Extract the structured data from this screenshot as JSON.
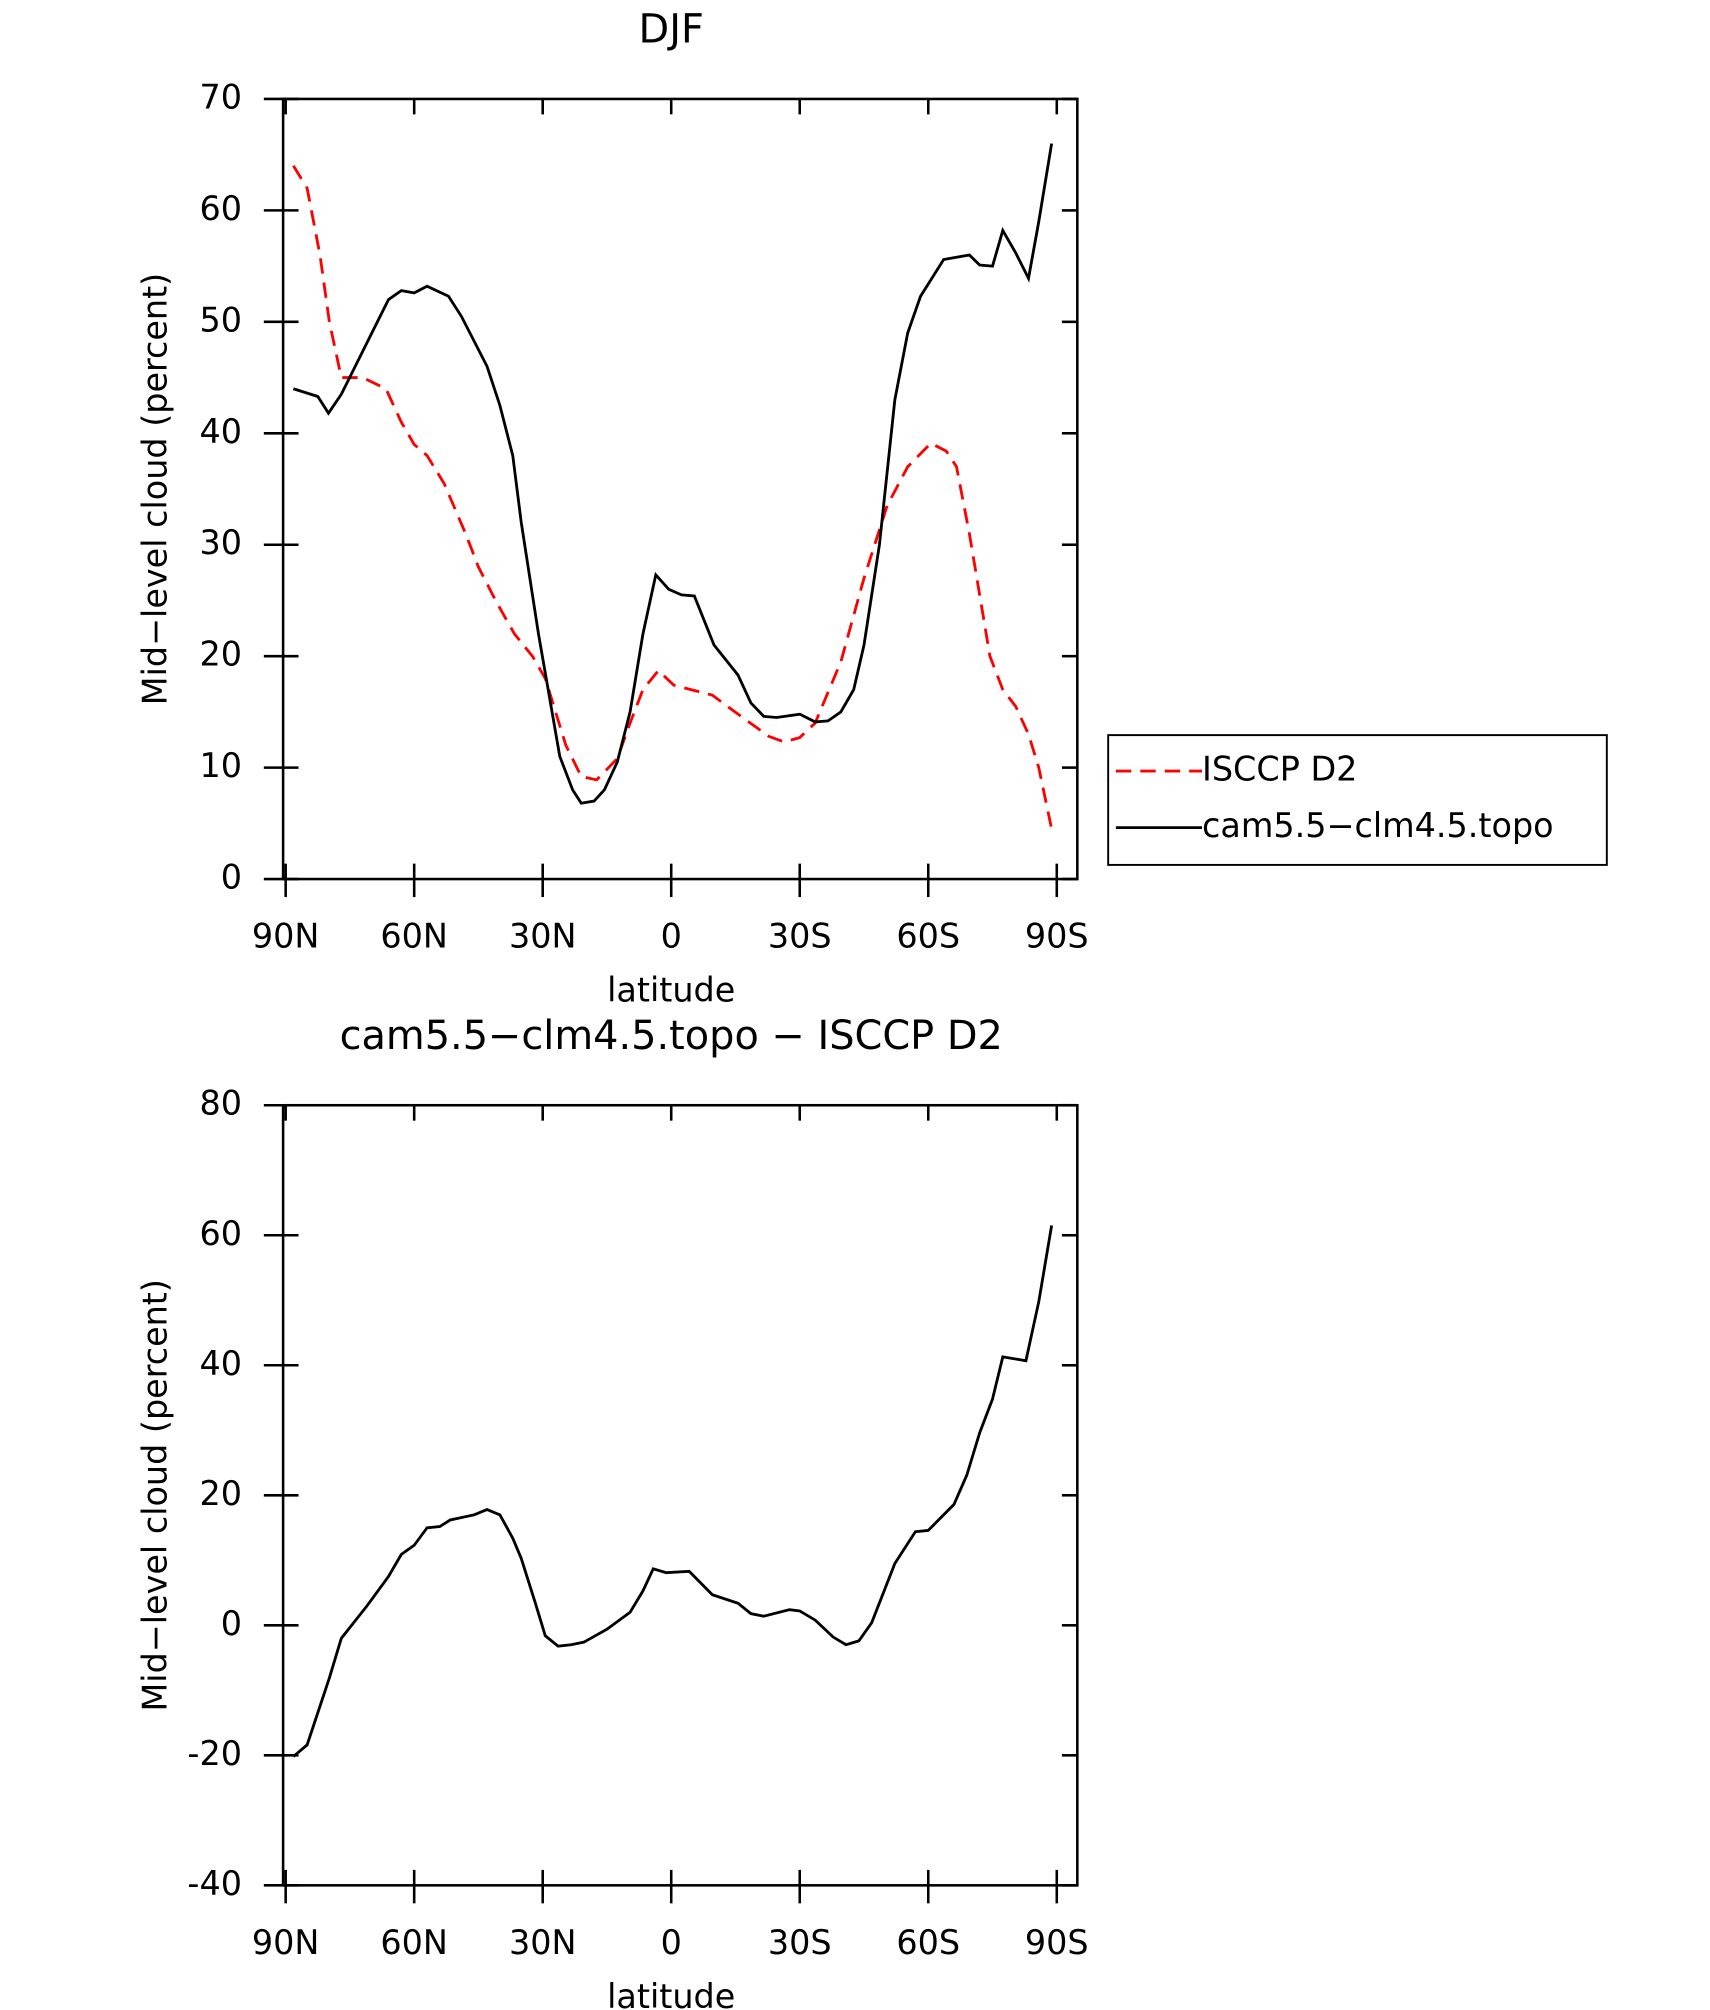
{
  "chart_data": [
    {
      "type": "line",
      "title": "DJF",
      "xlabel": "latitude",
      "ylabel": "Mid−level cloud (percent)",
      "xlim": [
        90,
        -90
      ],
      "xticks": [
        {
          "value": 90,
          "label": "90N"
        },
        {
          "value": 60,
          "label": "60N"
        },
        {
          "value": 30,
          "label": "30N"
        },
        0,
        {
          "value": -30,
          "label": "30S"
        },
        {
          "value": -60,
          "label": "60S"
        },
        {
          "value": -90,
          "label": "90S"
        }
      ],
      "ylim": [
        0,
        70
      ],
      "yticks": [
        0,
        10,
        20,
        30,
        40,
        50,
        60,
        70
      ],
      "series": [
        {
          "name": "ISCCP D2",
          "color": "#ff0000",
          "dash": true,
          "x": [
            88.2,
            85,
            82,
            79.8,
            77,
            72,
            66.6,
            63,
            60,
            57,
            53,
            48,
            45,
            41,
            36.6,
            32.4,
            29.4,
            24.6,
            21,
            17.4,
            12.6,
            9.6,
            6.6,
            3,
            -0.6,
            -9.6,
            -15.6,
            -22.8,
            -26.4,
            -30,
            -33.6,
            -39.6,
            -45,
            -50.4,
            -55.2,
            -60.6,
            -64.2,
            -66.6,
            -69.6,
            -74.4,
            -77.4,
            -80.4,
            -83.4,
            -85.8,
            -88.8
          ],
          "values": [
            64,
            62,
            56,
            50,
            45,
            45,
            44,
            41,
            39,
            38,
            35.5,
            31,
            28,
            25,
            22,
            20,
            18,
            12,
            9.2,
            8.9,
            10.8,
            14,
            17,
            18.7,
            17.4,
            16.5,
            14.8,
            12.8,
            12.3,
            12.7,
            14,
            19.5,
            27,
            33.5,
            37,
            39.1,
            38.4,
            37,
            31,
            20,
            17,
            15.5,
            13,
            10,
            4.5
          ]
        },
        {
          "name": "cam5.5−clm4.5.topo",
          "color": "#000000",
          "dash": false,
          "x": [
            88.2,
            82.5,
            80,
            77,
            66,
            63,
            60,
            57,
            52,
            49,
            43,
            40,
            37,
            35,
            31,
            26,
            23,
            21,
            18,
            15.6,
            12.6,
            9.6,
            6.6,
            3.6,
            0.6,
            -2.4,
            -5.4,
            -10,
            -15.6,
            -18.6,
            -21.6,
            -24.6,
            -30,
            -33.6,
            -36.6,
            -39.6,
            -42.6,
            -45,
            -48.6,
            -52.2,
            -55.2,
            -58.2,
            -63.6,
            -69.6,
            -72,
            -75,
            -77.4,
            -80.4,
            -83.4,
            -85.8,
            -88.8
          ],
          "values": [
            44,
            43.3,
            41.8,
            43.5,
            52,
            52.8,
            52.6,
            53.2,
            52.3,
            50.5,
            46,
            42.5,
            38,
            32,
            22,
            11,
            8,
            6.8,
            7,
            8,
            10.5,
            15,
            22,
            27.3,
            26,
            25.5,
            25.4,
            21,
            18.3,
            15.8,
            14.6,
            14.5,
            14.8,
            14.1,
            14.2,
            15,
            17,
            21,
            30,
            43,
            49,
            52.3,
            55.6,
            56,
            55.1,
            55,
            58.2,
            56.2,
            53.9,
            59,
            66
          ]
        }
      ]
    },
    {
      "type": "line",
      "title": "cam5.5−clm4.5.topo − ISCCP D2",
      "xlabel": "latitude",
      "ylabel": "Mid−level cloud (percent)",
      "xlim": [
        90,
        -90
      ],
      "xticks": [
        {
          "value": 90,
          "label": "90N"
        },
        {
          "value": 60,
          "label": "60N"
        },
        {
          "value": 30,
          "label": "30N"
        },
        0,
        {
          "value": -30,
          "label": "30S"
        },
        {
          "value": -60,
          "label": "60S"
        },
        {
          "value": -90,
          "label": "90S"
        }
      ],
      "ylim": [
        -40,
        80
      ],
      "yticks": [
        -40,
        -20,
        0,
        20,
        40,
        60,
        80
      ],
      "color": "#000000",
      "x": [
        88.2,
        85,
        79.8,
        77,
        71,
        66,
        63,
        60,
        57,
        54,
        51.6,
        46,
        43,
        40,
        37,
        35,
        31.8,
        29.4,
        26.4,
        23.4,
        20.4,
        15,
        9.6,
        6.6,
        4.2,
        1.2,
        -4.2,
        -9.6,
        -15.6,
        -18.6,
        -21.6,
        -27.6,
        -30,
        -33.6,
        -37.8,
        -40.8,
        -43.8,
        -46.8,
        -52.2,
        -57,
        -60,
        -66,
        -69,
        -72,
        -75,
        -77.4,
        -82.8,
        -85.8,
        -88.8
      ],
      "values": [
        -20.2,
        -18.4,
        -8.1,
        -2,
        3,
        7.5,
        10.9,
        12.3,
        15,
        15.2,
        16.2,
        17,
        17.8,
        17,
        13.4,
        10.3,
        3.6,
        -1.6,
        -3.2,
        -3,
        -2.6,
        -0.6,
        2,
        5.3,
        8.7,
        8.1,
        8.3,
        4.7,
        3.4,
        1.8,
        1.4,
        2.4,
        2.2,
        0.8,
        -1.8,
        -3,
        -2.4,
        0.4,
        9.5,
        14.4,
        14.6,
        18.6,
        23.1,
        29.6,
        34.8,
        41.3,
        40.7,
        49.8,
        61.5
      ]
    }
  ]
}
